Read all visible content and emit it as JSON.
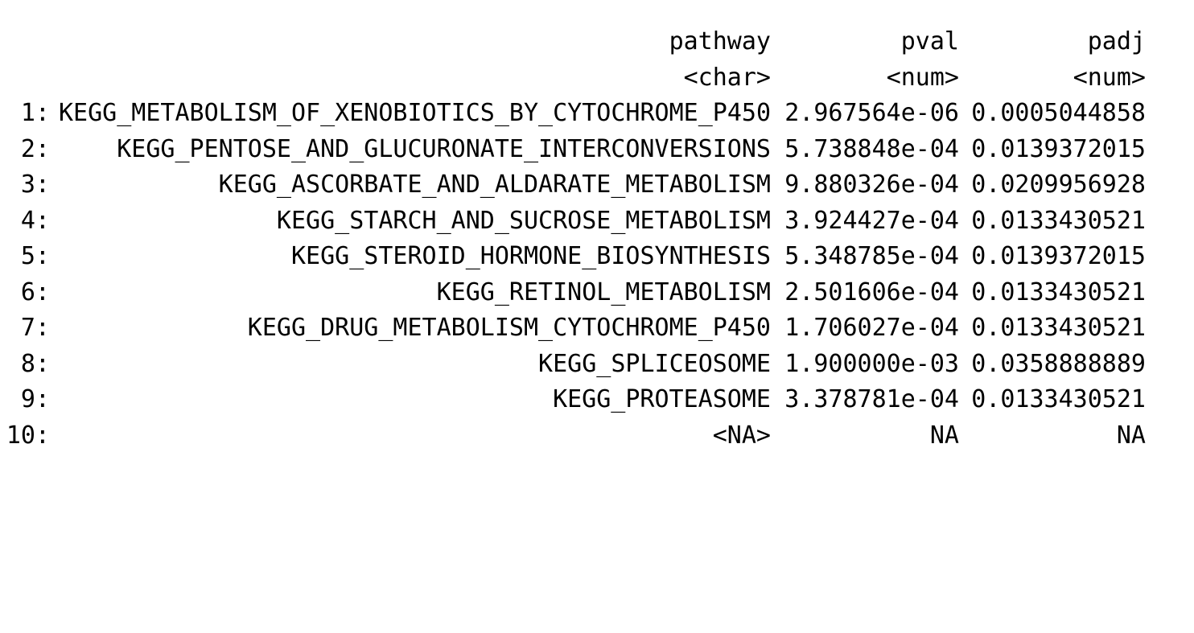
{
  "table": {
    "columns": [
      {
        "name": "pathway",
        "type": "<char>"
      },
      {
        "name": "pval",
        "type": "<num>"
      },
      {
        "name": "padj",
        "type": "<num>"
      }
    ],
    "rows": [
      {
        "index": "1:",
        "pathway": "KEGG_METABOLISM_OF_XENOBIOTICS_BY_CYTOCHROME_P450",
        "pval": "2.967564e-06",
        "padj": "0.0005044858"
      },
      {
        "index": "2:",
        "pathway": "KEGG_PENTOSE_AND_GLUCURONATE_INTERCONVERSIONS",
        "pval": "5.738848e-04",
        "padj": "0.0139372015"
      },
      {
        "index": "3:",
        "pathway": "KEGG_ASCORBATE_AND_ALDARATE_METABOLISM",
        "pval": "9.880326e-04",
        "padj": "0.0209956928"
      },
      {
        "index": "4:",
        "pathway": "KEGG_STARCH_AND_SUCROSE_METABOLISM",
        "pval": "3.924427e-04",
        "padj": "0.0133430521"
      },
      {
        "index": "5:",
        "pathway": "KEGG_STEROID_HORMONE_BIOSYNTHESIS",
        "pval": "5.348785e-04",
        "padj": "0.0139372015"
      },
      {
        "index": "6:",
        "pathway": "KEGG_RETINOL_METABOLISM",
        "pval": "2.501606e-04",
        "padj": "0.0133430521"
      },
      {
        "index": "7:",
        "pathway": "KEGG_DRUG_METABOLISM_CYTOCHROME_P450",
        "pval": "1.706027e-04",
        "padj": "0.0133430521"
      },
      {
        "index": "8:",
        "pathway": "KEGG_SPLICEOSOME",
        "pval": "1.900000e-03",
        "padj": "0.0358888889"
      },
      {
        "index": "9:",
        "pathway": "KEGG_PROTEASOME",
        "pval": "3.378781e-04",
        "padj": "0.0133430521"
      },
      {
        "index": "10:",
        "pathway": "<NA>",
        "pval": "NA",
        "padj": "NA"
      }
    ]
  }
}
